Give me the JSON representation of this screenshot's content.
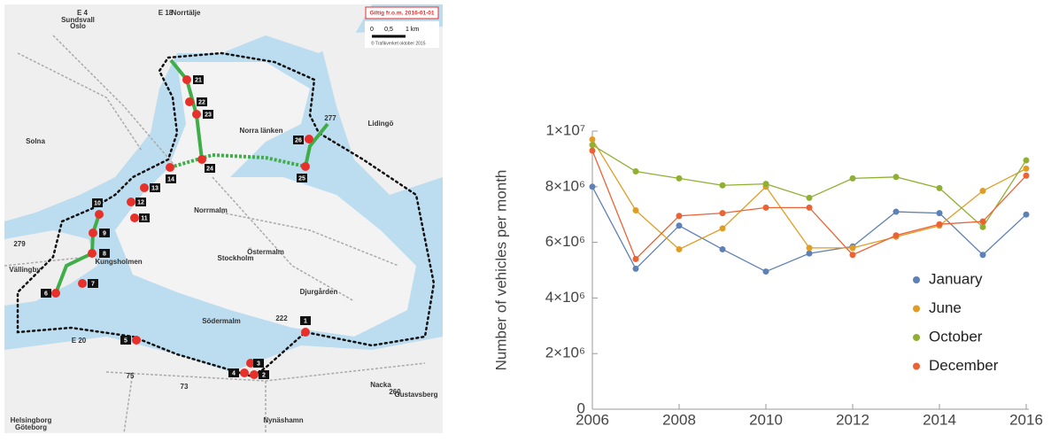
{
  "map": {
    "notice": "Giltig fr.o.m. 2016-01-01",
    "scale": [
      "0",
      "0,5",
      "1 km"
    ],
    "credit": "© Trafikverket oktober 2015",
    "places": [
      {
        "label": "Sundsvall"
      },
      {
        "label": "Oslo"
      },
      {
        "label": "Norrtälje"
      },
      {
        "label": "E 4"
      },
      {
        "label": "E 18"
      },
      {
        "label": "Solna"
      },
      {
        "label": "Lidingö"
      },
      {
        "label": "Norra länken"
      },
      {
        "label": "Norrmalm"
      },
      {
        "label": "Östermalm"
      },
      {
        "label": "Stockholm"
      },
      {
        "label": "Kungsholmen"
      },
      {
        "label": "Djurgården"
      },
      {
        "label": "Södermalm"
      },
      {
        "label": "Vällingby"
      },
      {
        "label": "Nacka"
      },
      {
        "label": "Gustavsberg"
      },
      {
        "label": "Helsingborg"
      },
      {
        "label": "Göteborg"
      },
      {
        "label": "Nynäshamn"
      },
      {
        "label": "277"
      },
      {
        "label": "222"
      },
      {
        "label": "279"
      },
      {
        "label": "260"
      },
      {
        "label": "73"
      },
      {
        "label": "75"
      },
      {
        "label": "E 20"
      }
    ],
    "stations": [
      {
        "label": "1"
      },
      {
        "label": "2"
      },
      {
        "label": "3"
      },
      {
        "label": "4"
      },
      {
        "label": "5"
      },
      {
        "label": "6"
      },
      {
        "label": "7"
      },
      {
        "label": "8"
      },
      {
        "label": "9"
      },
      {
        "label": "10"
      },
      {
        "label": "11"
      },
      {
        "label": "12"
      },
      {
        "label": "13"
      },
      {
        "label": "14"
      },
      {
        "label": "21"
      },
      {
        "label": "22"
      },
      {
        "label": "23"
      },
      {
        "label": "24"
      },
      {
        "label": "25"
      },
      {
        "label": "26"
      }
    ]
  },
  "chart_data": {
    "type": "line",
    "y_label": "Number of vehicles per month",
    "x": [
      2006,
      2007,
      2008,
      2009,
      2010,
      2011,
      2012,
      2013,
      2014,
      2015,
      2016
    ],
    "xlim": [
      2006,
      2016
    ],
    "xticks": [
      2006,
      2008,
      2010,
      2012,
      2014,
      2016
    ],
    "ylim": [
      0,
      10000000
    ],
    "yticks": [
      0,
      {
        "value": 2000000,
        "label": "2×10⁶"
      },
      {
        "value": 4000000,
        "label": "4×10⁶"
      },
      {
        "value": 6000000,
        "label": "6×10⁶"
      },
      {
        "value": 8000000,
        "label": "8×10⁶"
      },
      {
        "value": 10000000,
        "label": "1×10⁷"
      }
    ],
    "legend": "lower-right",
    "series": [
      {
        "name": "January",
        "color": "#5e81b5",
        "values": [
          8000000,
          5050000,
          6600000,
          5750000,
          4950000,
          5600000,
          5850000,
          7100000,
          7050000,
          5550000,
          7000000
        ]
      },
      {
        "name": "June",
        "color": "#e19c24",
        "values": [
          9700000,
          7150000,
          5750000,
          6500000,
          8000000,
          5800000,
          5800000,
          6200000,
          6600000,
          7850000,
          8650000
        ]
      },
      {
        "name": "October",
        "color": "#8fb032",
        "values": [
          9500000,
          8550000,
          8300000,
          8050000,
          8100000,
          7600000,
          8300000,
          8350000,
          7950000,
          6550000,
          8950000
        ]
      },
      {
        "name": "December",
        "color": "#eb6235",
        "values": [
          9300000,
          5400000,
          6950000,
          7050000,
          7250000,
          7250000,
          5550000,
          6250000,
          6650000,
          6750000,
          8400000
        ]
      }
    ]
  }
}
